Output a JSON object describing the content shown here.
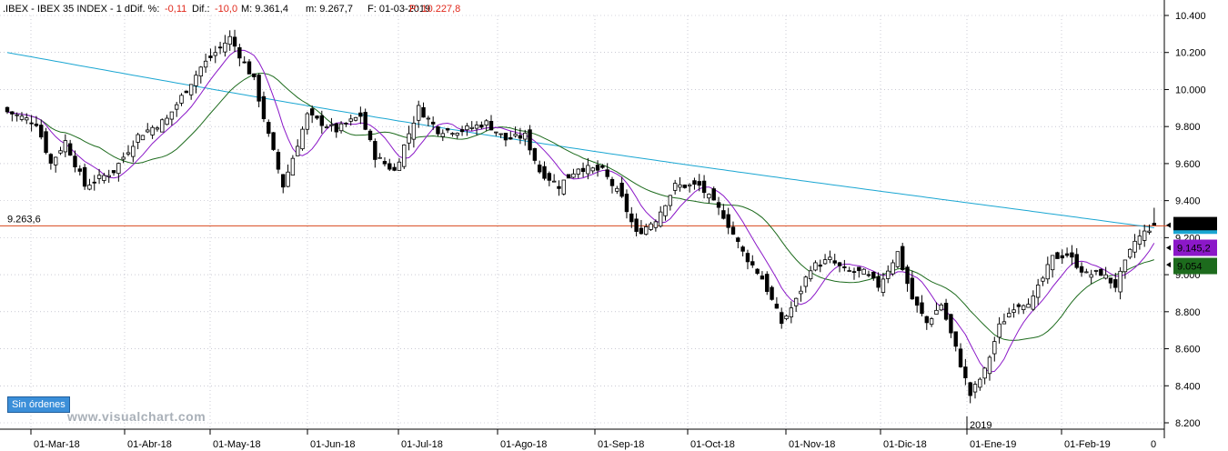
{
  "header": {
    "symbol": ".IBEX - IBEX 35 INDEX - 1 d",
    "dif_pct_label": "Dif. %:",
    "dif_pct_value": "-0,11",
    "dif_label": "Dif.:",
    "dif_value": "-10,0",
    "max_label": "M: 9.361,4",
    "min_label": "m: 9.267,7",
    "date_label": "F: 01-03-2019",
    "price_label": "P: 10.227,8"
  },
  "buttons": {
    "sin_ordenes": "Sin órdenes"
  },
  "watermark": "www.visualchart.com",
  "colors": {
    "up": "#ffffff",
    "down": "#000000",
    "ma_fast": "#8b18c8",
    "ma_mid": "#1d6b1d",
    "ma_slow": "#1aa6d2",
    "hline": "#d9471c",
    "red": "#e0281b"
  },
  "chart_data": {
    "type": "candlestick",
    "title": "IBEX 35 INDEX",
    "ylim": [
      8200,
      10400
    ],
    "yticks": [
      8200,
      8400,
      8600,
      8800,
      9000,
      9200,
      9400,
      9600,
      9800,
      10000,
      10200,
      10400
    ],
    "ytick_labels": [
      "8.200",
      "8.400",
      "8.600",
      "8.800",
      "9.000",
      "9.200",
      "9.400",
      "9.600",
      "9.800",
      "10.000",
      "10.200",
      "10.400"
    ],
    "xtick_labels": [
      "01-Mar-18",
      "01-Abr-18",
      "01-May-18",
      "01-Jun-18",
      "01-Jul-18",
      "01-Ago-18",
      "01-Sep-18",
      "01-Oct-18",
      "01-Nov-18",
      "01-Dic-18",
      "01-Ene-19",
      "01-Feb-19"
    ],
    "year_label": "2019",
    "grid": true,
    "horizontal_line": {
      "value": 9263.6,
      "label": "9.263,6"
    },
    "price_tags": [
      {
        "label": "9.267,7",
        "value": 9267.7
      },
      {
        "label": "9.145,2",
        "value": 9145.2
      },
      {
        "label": "9.054",
        "value": 9054
      }
    ],
    "close_anchors": [
      [
        0,
        9880
      ],
      [
        6,
        9820
      ],
      [
        9,
        9600
      ],
      [
        12,
        9720
      ],
      [
        16,
        9480
      ],
      [
        22,
        9560
      ],
      [
        27,
        9750
      ],
      [
        33,
        9840
      ],
      [
        40,
        10120
      ],
      [
        46,
        10280
      ],
      [
        51,
        10050
      ],
      [
        54,
        9750
      ],
      [
        57,
        9480
      ],
      [
        62,
        9860
      ],
      [
        68,
        9780
      ],
      [
        73,
        9860
      ],
      [
        76,
        9640
      ],
      [
        80,
        9560
      ],
      [
        85,
        9900
      ],
      [
        89,
        9780
      ],
      [
        94,
        9780
      ],
      [
        99,
        9820
      ],
      [
        103,
        9730
      ],
      [
        107,
        9750
      ],
      [
        110,
        9560
      ],
      [
        114,
        9480
      ],
      [
        118,
        9580
      ],
      [
        123,
        9560
      ],
      [
        127,
        9410
      ],
      [
        130,
        9220
      ],
      [
        134,
        9300
      ],
      [
        138,
        9480
      ],
      [
        143,
        9480
      ],
      [
        148,
        9320
      ],
      [
        152,
        9120
      ],
      [
        156,
        8980
      ],
      [
        160,
        8740
      ],
      [
        163,
        8860
      ],
      [
        166,
        9040
      ],
      [
        170,
        9080
      ],
      [
        173,
        9020
      ],
      [
        177,
        9010
      ],
      [
        180,
        8940
      ],
      [
        184,
        9120
      ],
      [
        187,
        8870
      ],
      [
        190,
        8740
      ],
      [
        193,
        8840
      ],
      [
        196,
        8600
      ],
      [
        199,
        8350
      ],
      [
        202,
        8480
      ],
      [
        205,
        8720
      ],
      [
        208,
        8830
      ],
      [
        212,
        8870
      ],
      [
        216,
        9090
      ],
      [
        219,
        9110
      ],
      [
        223,
        9000
      ],
      [
        226,
        9010
      ],
      [
        229,
        8940
      ],
      [
        233,
        9180
      ],
      [
        236,
        9250
      ],
      [
        237,
        9267.7
      ]
    ]
  }
}
